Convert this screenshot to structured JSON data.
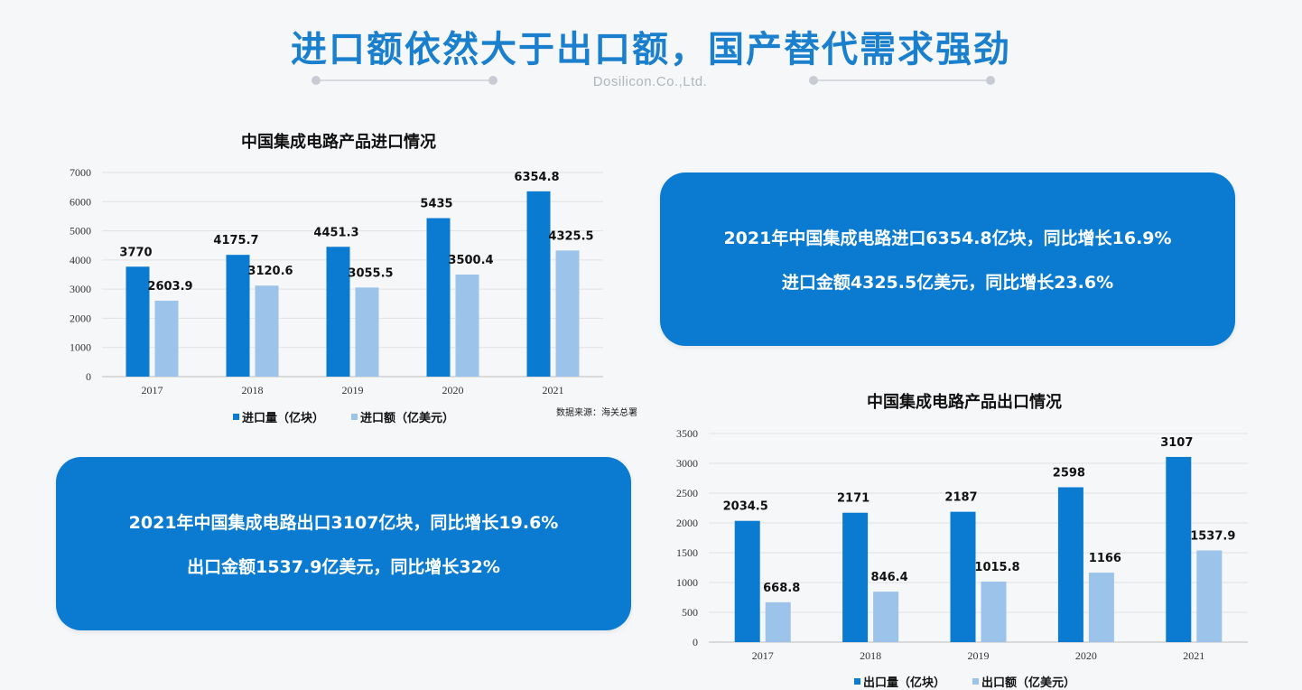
{
  "header": {
    "title": "进口额依然大于出口额，国产替代需求强劲",
    "subtitle": "Dosilicon.Co.,Ltd."
  },
  "colors": {
    "title": "#1a7fcc",
    "series_dark": "#0a7bd0",
    "series_light": "#9cc3ea",
    "box": "#0a7bd0"
  },
  "import_box": {
    "line1": "2021年中国集成电路进口6354.8亿块，同比增长16.9%",
    "line2": "进口金额4325.5亿美元，同比增长23.6%"
  },
  "export_box": {
    "line1": "2021年中国集成电路出口3107亿块，同比增长19.6%",
    "line2": "出口金额1537.9亿美元，同比增长32%"
  },
  "import_source": "数据来源：海关总署",
  "chart_data": [
    {
      "id": "import",
      "type": "bar",
      "title": "中国集成电路产品进口情况",
      "categories": [
        "2017",
        "2018",
        "2019",
        "2020",
        "2021"
      ],
      "series": [
        {
          "name": "进口量（亿块）",
          "values": [
            3770,
            4175.7,
            4451.3,
            5435,
            6354.8
          ],
          "labels": [
            "3770",
            "4175.7",
            "4451.3",
            "5435",
            "6354.8"
          ]
        },
        {
          "name": "进口额（亿美元）",
          "values": [
            2603.9,
            3120.6,
            3055.5,
            3500.4,
            4325.5
          ],
          "labels": [
            "2603.9",
            "3120.6",
            "3055.5",
            "3500.4",
            "4325.5"
          ]
        }
      ],
      "ylim": [
        0,
        7000
      ],
      "yticks": [
        "0",
        "1000",
        "2000",
        "3000",
        "4000",
        "5000",
        "6000",
        "7000"
      ],
      "grid": true,
      "legend": "bottom"
    },
    {
      "id": "export",
      "type": "bar",
      "title": "中国集成电路产品出口情况",
      "categories": [
        "2017",
        "2018",
        "2019",
        "2020",
        "2021"
      ],
      "series": [
        {
          "name": "出口量（亿块）",
          "values": [
            2034.5,
            2171,
            2187,
            2598,
            3107
          ],
          "labels": [
            "2034.5",
            "2171",
            "2187",
            "2598",
            "3107"
          ]
        },
        {
          "name": "出口额（亿美元）",
          "values": [
            668.8,
            846.4,
            1015.8,
            1166,
            1537.9
          ],
          "labels": [
            "668.8",
            "846.4",
            "1015.8",
            "1166",
            "1537.9"
          ]
        }
      ],
      "ylim": [
        0,
        3500
      ],
      "yticks": [
        "0",
        "500",
        "1000",
        "1500",
        "2000",
        "2500",
        "3000",
        "3500"
      ],
      "grid": true,
      "legend": "bottom"
    }
  ]
}
